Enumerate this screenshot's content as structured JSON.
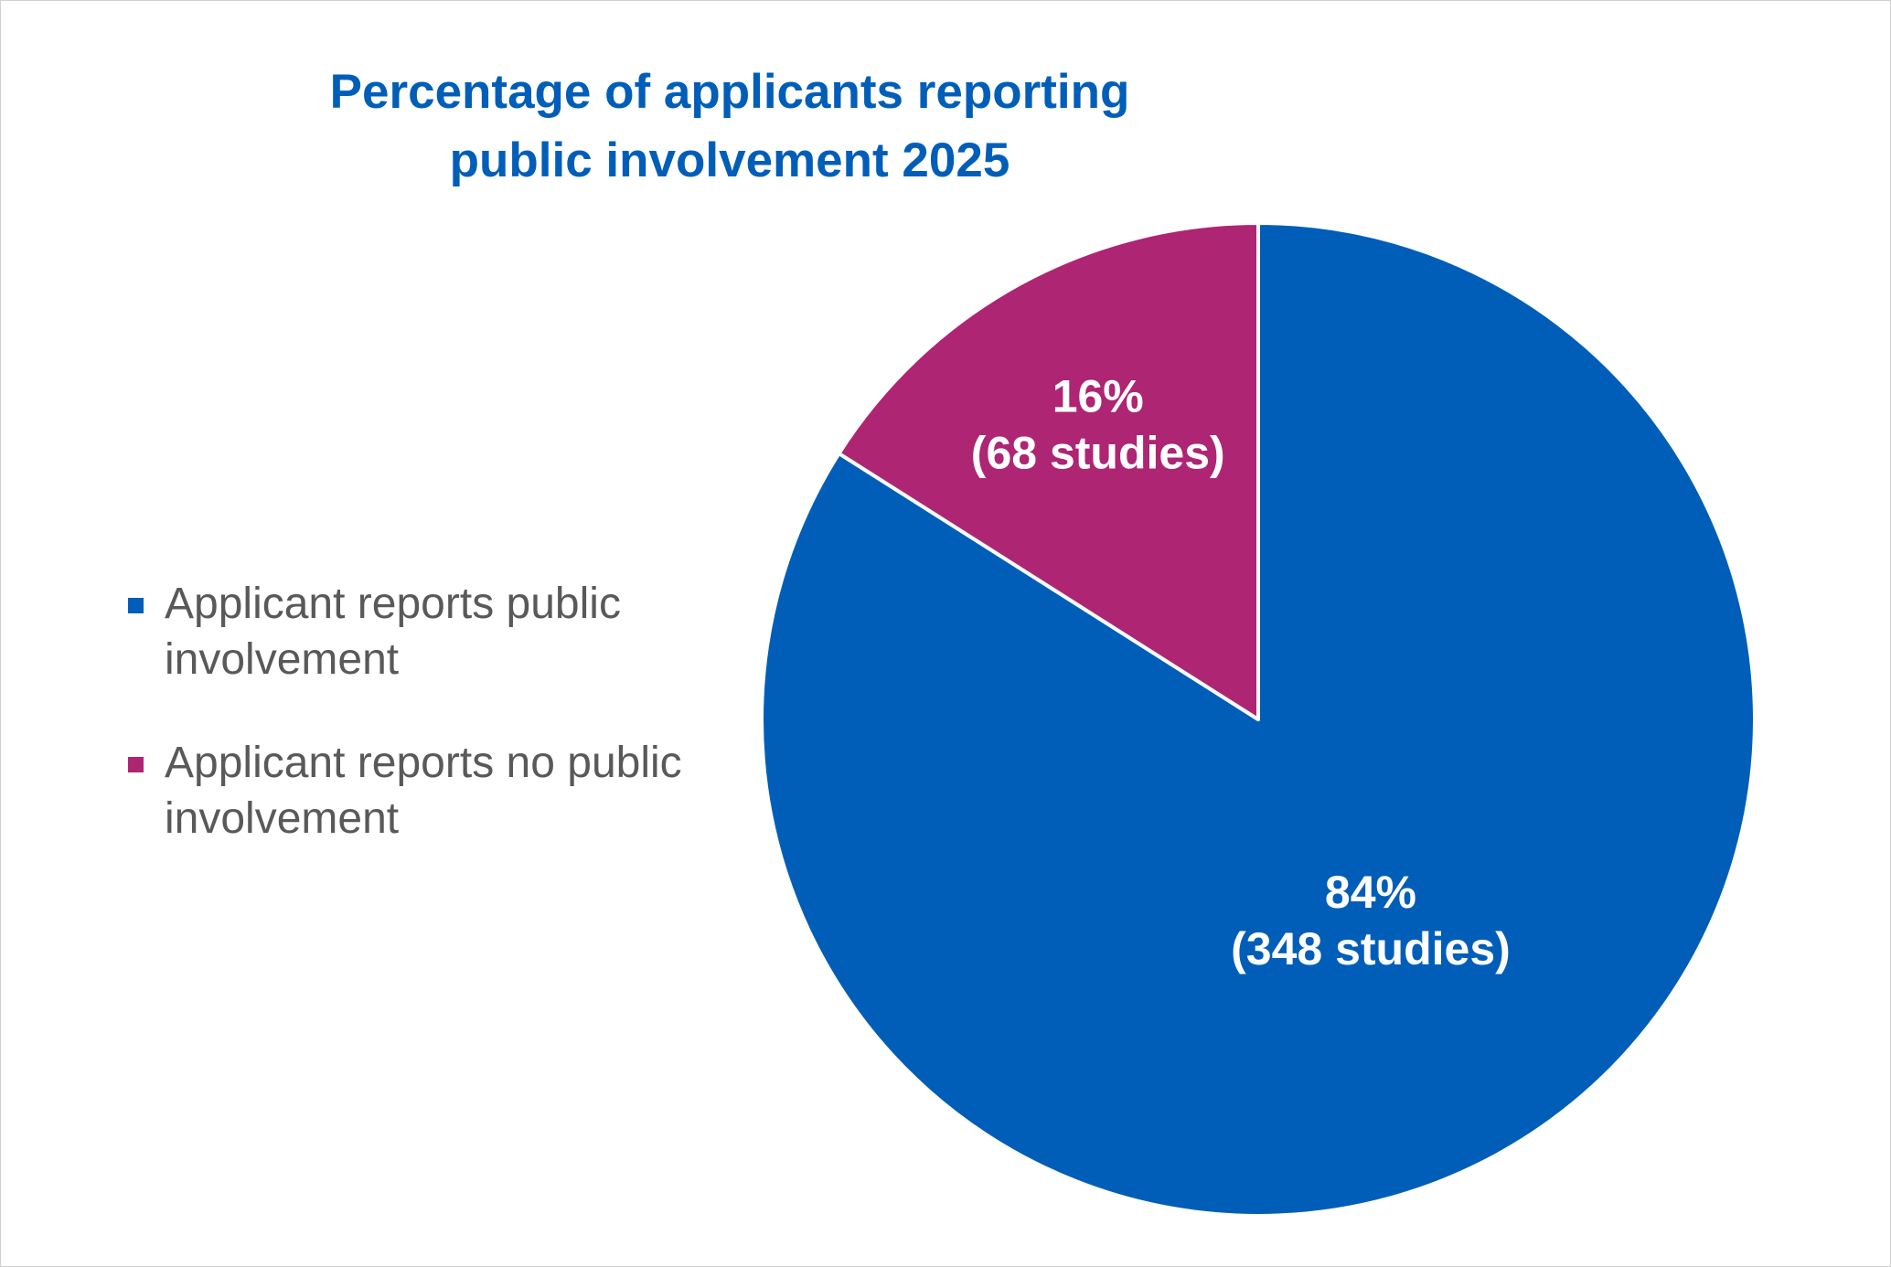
{
  "chart_data": {
    "type": "pie",
    "title": [
      "Percentage of applicants reporting",
      "public involvement 2025"
    ],
    "categories": [
      "Applicant reports public involvement",
      "Applicant reports no public involvement"
    ],
    "values": [
      84,
      16
    ],
    "value_labels": [
      "84%",
      "16%"
    ],
    "counts": [
      348,
      68
    ],
    "count_labels": [
      "(348 studies)",
      "(68 studies)"
    ],
    "colors": [
      "#005eb8",
      "#ae2573"
    ],
    "legend": "left"
  }
}
